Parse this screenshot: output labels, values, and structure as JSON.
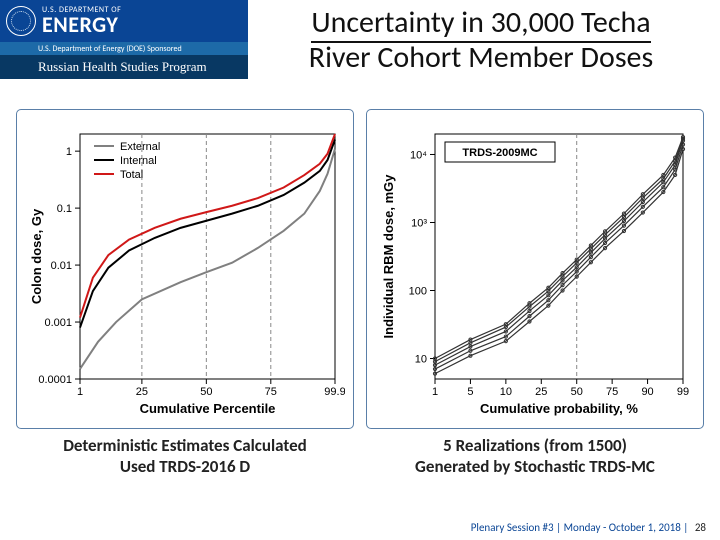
{
  "banner": {
    "dept_top": "U.S. DEPARTMENT OF",
    "dept_main": "ENERGY",
    "sub": "U.S. Department of Energy (DOE) Sponsored",
    "program": "Russian Health Studies Program"
  },
  "title_line1": "Uncertainty in 30,000 Techa",
  "title_line2": "River Cohort Member Doses",
  "left_chart": {
    "type": "line-log",
    "xlabel": "Cumulative Percentile",
    "ylabel": "Colon dose, Gy",
    "xticks": [
      1,
      25,
      50,
      75,
      99.9
    ],
    "xlim": [
      1,
      99.9
    ],
    "yticks": [
      0.0001,
      0.001,
      0.01,
      0.1,
      1
    ],
    "ylim": [
      0.0001,
      2
    ],
    "dash_x": [
      25,
      50,
      75
    ],
    "legend": {
      "items": [
        {
          "label": "External",
          "color": "#808080"
        },
        {
          "label": "Internal",
          "color": "#000000"
        },
        {
          "label": "Total",
          "color": "#d01818"
        }
      ]
    },
    "series": [
      {
        "name": "External",
        "color": "#808080",
        "width": 1.8,
        "points": [
          [
            1,
            0.00015
          ],
          [
            8,
            0.00045
          ],
          [
            15,
            0.001
          ],
          [
            25,
            0.0025
          ],
          [
            40,
            0.005
          ],
          [
            50,
            0.0075
          ],
          [
            60,
            0.011
          ],
          [
            70,
            0.02
          ],
          [
            80,
            0.04
          ],
          [
            88,
            0.08
          ],
          [
            94,
            0.2
          ],
          [
            97,
            0.4
          ],
          [
            99.9,
            1.1
          ]
        ]
      },
      {
        "name": "Internal",
        "color": "#000000",
        "width": 2.2,
        "points": [
          [
            1,
            0.0008
          ],
          [
            6,
            0.0035
          ],
          [
            12,
            0.009
          ],
          [
            20,
            0.018
          ],
          [
            30,
            0.03
          ],
          [
            40,
            0.045
          ],
          [
            50,
            0.06
          ],
          [
            60,
            0.08
          ],
          [
            70,
            0.11
          ],
          [
            80,
            0.17
          ],
          [
            88,
            0.28
          ],
          [
            94,
            0.45
          ],
          [
            97,
            0.7
          ],
          [
            99.9,
            1.6
          ]
        ]
      },
      {
        "name": "Total",
        "color": "#d01818",
        "width": 2.4,
        "points": [
          [
            1,
            0.0012
          ],
          [
            6,
            0.006
          ],
          [
            12,
            0.015
          ],
          [
            20,
            0.028
          ],
          [
            30,
            0.045
          ],
          [
            40,
            0.065
          ],
          [
            50,
            0.085
          ],
          [
            60,
            0.11
          ],
          [
            70,
            0.15
          ],
          [
            80,
            0.23
          ],
          [
            88,
            0.38
          ],
          [
            94,
            0.6
          ],
          [
            97,
            0.9
          ],
          [
            99.9,
            2.0
          ]
        ]
      }
    ]
  },
  "right_chart": {
    "type": "line-log",
    "title_box": "TRDS-2009MC",
    "xlabel": "Cumulative probability, %",
    "ylabel": "Individual RBM dose, mGy",
    "xticks": [
      1,
      5,
      10,
      25,
      50,
      75,
      90,
      99
    ],
    "xlim": [
      1,
      99
    ],
    "yticks": [
      10,
      100,
      1000,
      10000
    ],
    "ytick_labels": [
      "10",
      "100",
      "10³",
      "10⁴"
    ],
    "ylim": [
      5,
      20000
    ],
    "dash_x": [
      50
    ],
    "realizations": [
      [
        [
          1,
          6
        ],
        [
          5,
          11
        ],
        [
          10,
          18
        ],
        [
          20,
          35
        ],
        [
          30,
          60
        ],
        [
          40,
          100
        ],
        [
          50,
          160
        ],
        [
          60,
          260
        ],
        [
          70,
          420
        ],
        [
          80,
          750
        ],
        [
          88,
          1400
        ],
        [
          94,
          2800
        ],
        [
          97,
          5000
        ],
        [
          99,
          12000
        ]
      ],
      [
        [
          1,
          7
        ],
        [
          5,
          13
        ],
        [
          10,
          21
        ],
        [
          20,
          42
        ],
        [
          30,
          72
        ],
        [
          40,
          120
        ],
        [
          50,
          190
        ],
        [
          60,
          310
        ],
        [
          70,
          500
        ],
        [
          80,
          900
        ],
        [
          88,
          1700
        ],
        [
          94,
          3300
        ],
        [
          97,
          6000
        ],
        [
          99,
          14000
        ]
      ],
      [
        [
          1,
          8
        ],
        [
          5,
          15
        ],
        [
          10,
          25
        ],
        [
          20,
          50
        ],
        [
          30,
          85
        ],
        [
          40,
          140
        ],
        [
          50,
          220
        ],
        [
          60,
          360
        ],
        [
          70,
          580
        ],
        [
          80,
          1050
        ],
        [
          88,
          2000
        ],
        [
          94,
          3900
        ],
        [
          97,
          7000
        ],
        [
          99,
          16000
        ]
      ],
      [
        [
          1,
          9
        ],
        [
          5,
          17
        ],
        [
          10,
          29
        ],
        [
          20,
          58
        ],
        [
          30,
          98
        ],
        [
          40,
          160
        ],
        [
          50,
          255
        ],
        [
          60,
          410
        ],
        [
          70,
          660
        ],
        [
          80,
          1200
        ],
        [
          88,
          2300
        ],
        [
          94,
          4400
        ],
        [
          97,
          8000
        ],
        [
          99,
          17000
        ]
      ],
      [
        [
          1,
          10
        ],
        [
          5,
          19
        ],
        [
          10,
          32
        ],
        [
          20,
          65
        ],
        [
          30,
          110
        ],
        [
          40,
          180
        ],
        [
          50,
          285
        ],
        [
          60,
          460
        ],
        [
          70,
          740
        ],
        [
          80,
          1350
        ],
        [
          88,
          2600
        ],
        [
          94,
          5000
        ],
        [
          97,
          9000
        ],
        [
          99,
          18000
        ]
      ]
    ]
  },
  "caption_left_line1": "Deterministic Estimates Calculated",
  "caption_left_line2": "Used TRDS-2016 D",
  "caption_right_line1": "5 Realizations (from 1500)",
  "caption_right_line2": "Generated by Stochastic TRDS-MC",
  "footer": {
    "text": "Plenary Session #3 | Monday - October 1, 2018 |",
    "page": "28"
  },
  "colors": {
    "banner_blue": "#0a4595",
    "sub_blue": "#1d6aa8",
    "rhsp_blue": "#083863",
    "panel_border": "#5a7fa8",
    "red": "#d01818",
    "gray": "#808080"
  }
}
